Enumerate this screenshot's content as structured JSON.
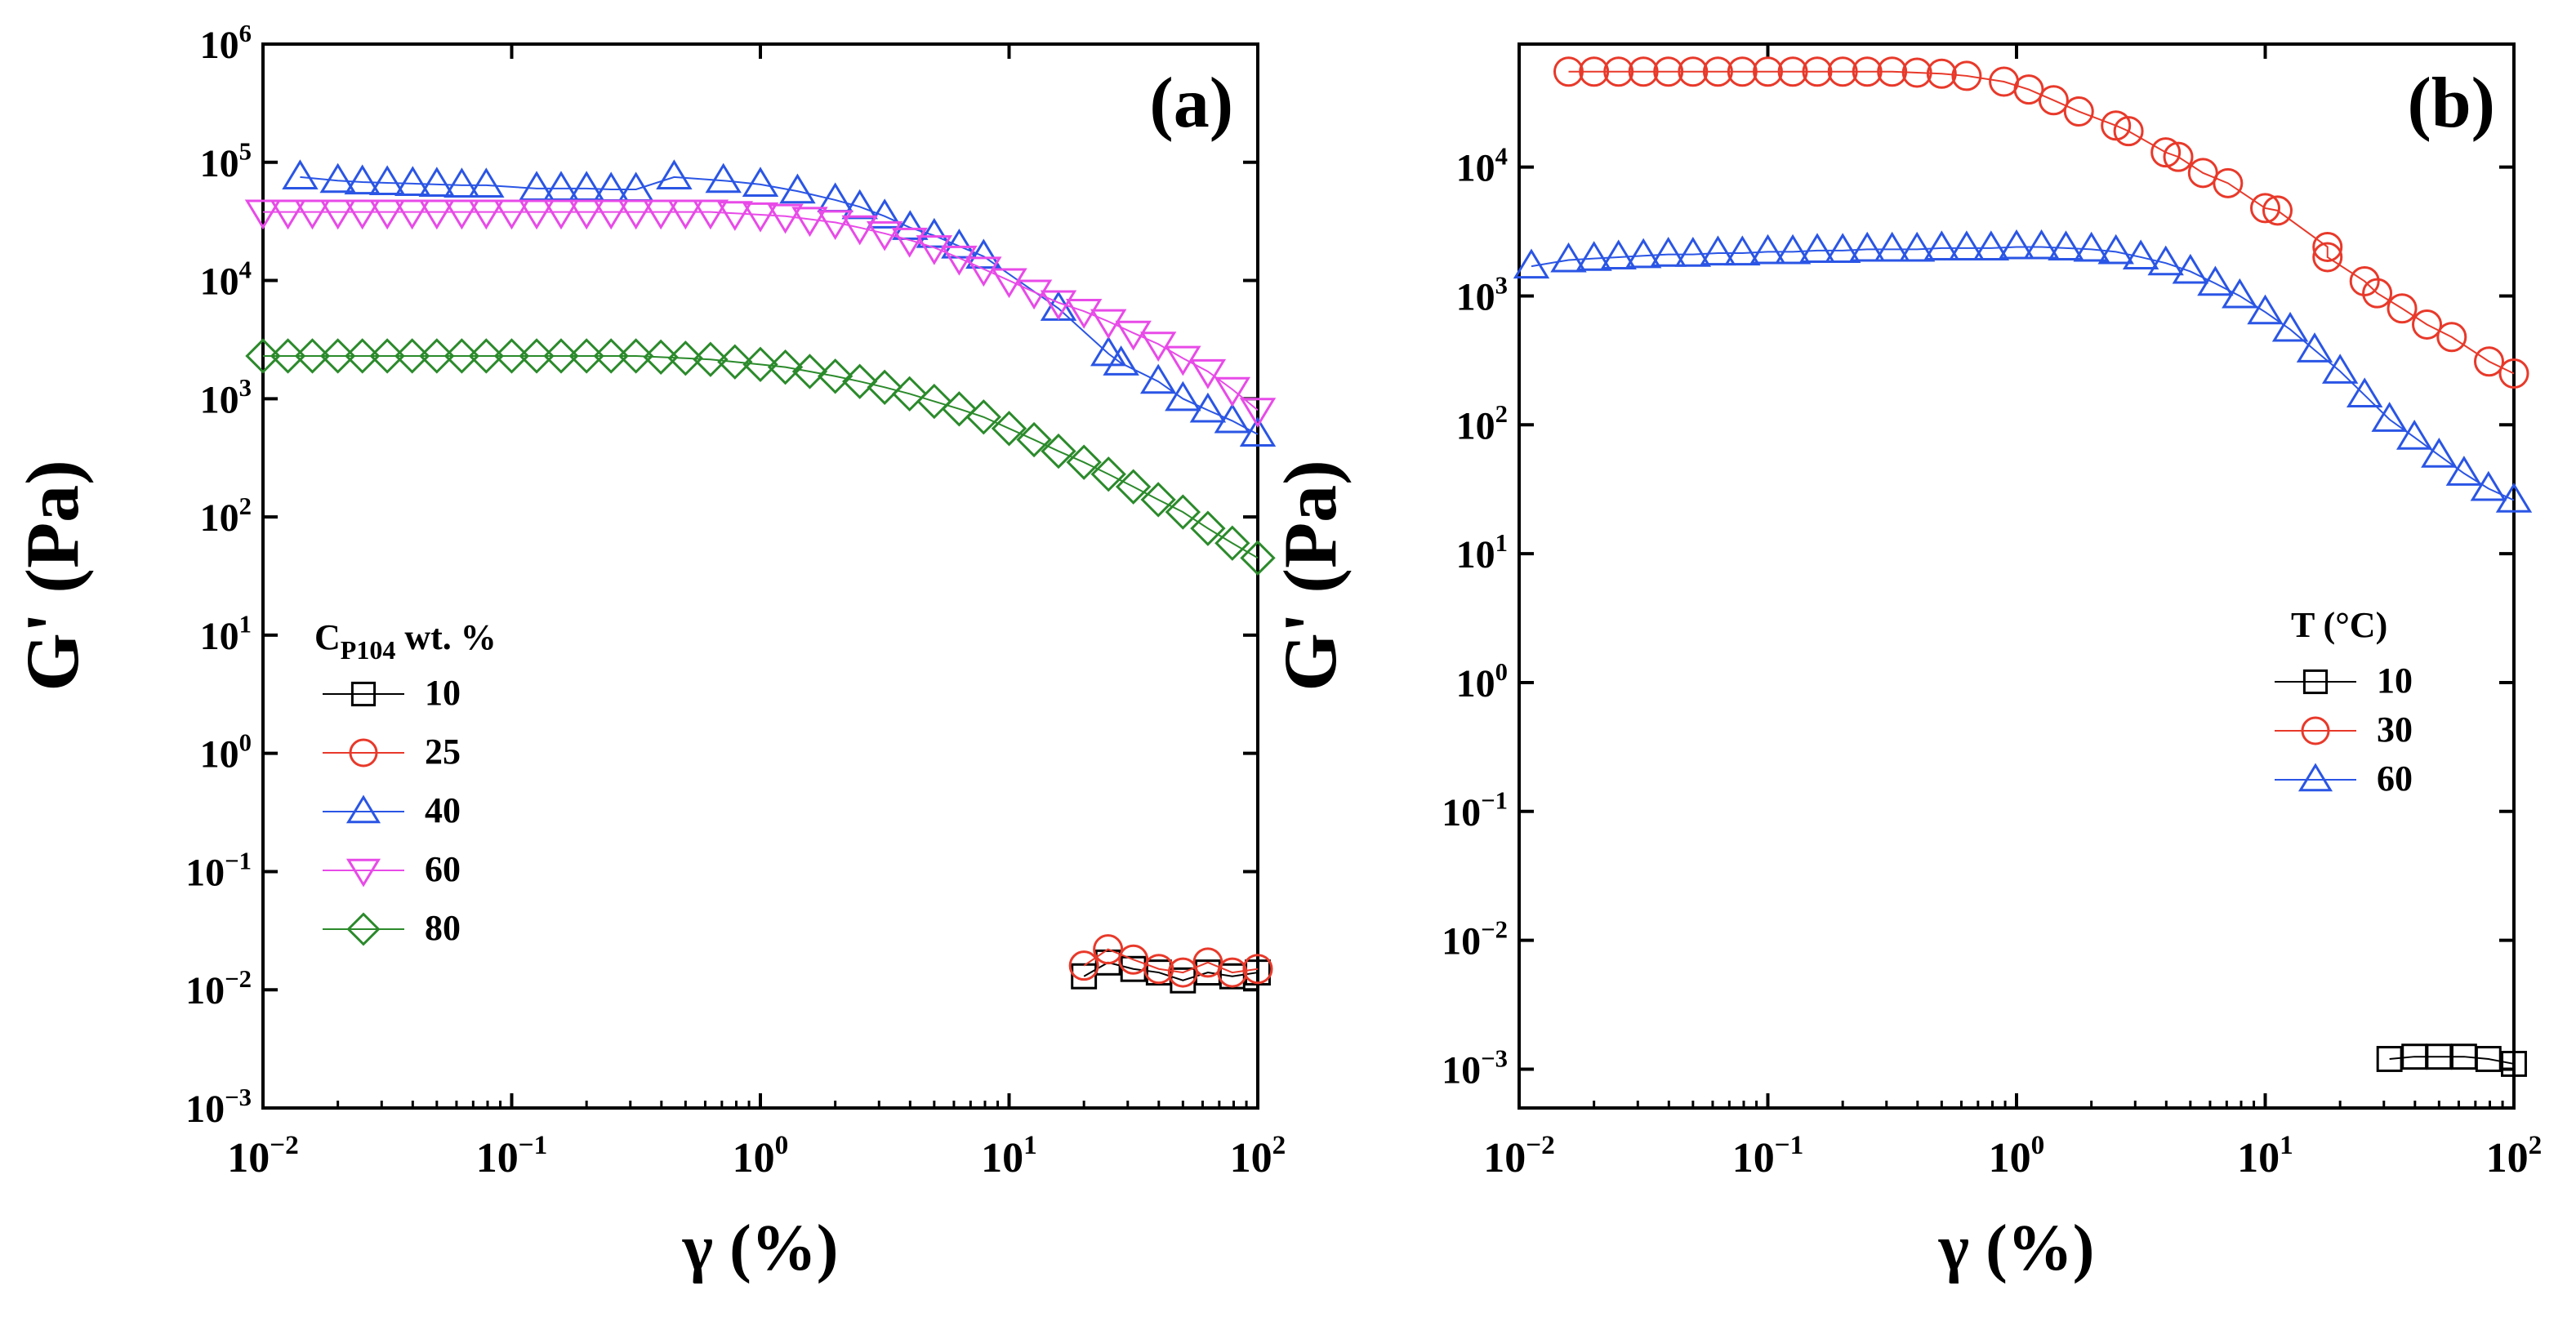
{
  "figure": {
    "panels": [
      {
        "panel_label": "(a)",
        "ylabel": "G' (Pa)",
        "xlabel": "γ (%)",
        "legend_title": "C",
        "legend_title_sub": "P104",
        "legend_title_suffix": " wt. %"
      },
      {
        "panel_label": "(b)",
        "ylabel": "G' (Pa)",
        "xlabel": "γ (%)",
        "legend_title": "T (°C)",
        "legend_title_sub": "",
        "legend_title_suffix": ""
      }
    ]
  },
  "chart_data": [
    {
      "type": "scatter",
      "panel": "(a)",
      "xlabel": "γ (%)",
      "ylabel": "G' (Pa)",
      "xscale": "log",
      "yscale": "log",
      "xlim": [
        0.01,
        100
      ],
      "ylim": [
        0.001,
        1000000
      ],
      "x_ticks": [
        "10^-2",
        "10^-1",
        "10^0",
        "10^1",
        "10^2"
      ],
      "y_ticks": [
        "10^-3",
        "10^-2",
        "10^-1",
        "10^0",
        "10^1",
        "10^2",
        "10^3",
        "10^4",
        "10^5",
        "10^6"
      ],
      "legend_placement": "left-middle",
      "series": [
        {
          "name": "10",
          "marker": "square",
          "color": "#000000",
          "x": [
            20,
            25,
            31.6,
            40,
            50,
            63,
            79,
            100
          ],
          "y": [
            0.013,
            0.017,
            0.015,
            0.014,
            0.012,
            0.014,
            0.013,
            0.014
          ]
        },
        {
          "name": "25",
          "marker": "circle",
          "color": "#e8392a",
          "x": [
            20,
            25,
            31.6,
            40,
            50,
            63,
            79,
            100
          ],
          "y": [
            0.016,
            0.022,
            0.018,
            0.015,
            0.014,
            0.017,
            0.014,
            0.015
          ]
        },
        {
          "name": "40",
          "marker": "triangle-up",
          "color": "#2a55e5",
          "x": [
            0.0141,
            0.02,
            0.0251,
            0.0316,
            0.04,
            0.05,
            0.063,
            0.079,
            0.126,
            0.158,
            0.2,
            0.251,
            0.316,
            0.45,
            0.71,
            1.0,
            1.41,
            2.0,
            2.51,
            3.16,
            4.0,
            5.0,
            6.3,
            7.9,
            15.8,
            25.1,
            28.2,
            39.8,
            50,
            63,
            79,
            100
          ],
          "y": [
            75000,
            70000,
            68000,
            67000,
            66000,
            65000,
            64000,
            64000,
            60000,
            60000,
            60000,
            59000,
            59000,
            75000,
            70000,
            65000,
            57000,
            48000,
            42000,
            35000,
            28000,
            24000,
            19500,
            16000,
            5800,
            2400,
            2000,
            1400,
            1000,
            800,
            650,
            500
          ]
        },
        {
          "name": "60",
          "marker": "triangle-down",
          "color": "#e84ae8",
          "x": [
            0.01,
            0.0126,
            0.0158,
            0.02,
            0.0251,
            0.0316,
            0.0398,
            0.05,
            0.063,
            0.079,
            0.1,
            0.126,
            0.158,
            0.2,
            0.251,
            0.316,
            0.398,
            0.5,
            0.63,
            0.79,
            1.0,
            1.26,
            1.58,
            2.0,
            2.51,
            3.16,
            3.98,
            5.0,
            6.3,
            7.9,
            10,
            12.6,
            15.8,
            20,
            25.1,
            31.6,
            39.8,
            50,
            63,
            79,
            100
          ],
          "y": [
            38000,
            38000,
            38000,
            38000,
            38000,
            38000,
            38000,
            38000,
            38000,
            38000,
            38000,
            38000,
            38000,
            38000,
            38000,
            38000,
            38000,
            38000,
            38000,
            37000,
            36000,
            35000,
            33000,
            31000,
            28000,
            25000,
            22000,
            19000,
            15500,
            12500,
            10000,
            8000,
            6500,
            5500,
            4500,
            3600,
            2900,
            2200,
            1700,
            1200,
            800
          ]
        },
        {
          "name": "80",
          "marker": "diamond",
          "color": "#2b8a2b",
          "x": [
            0.01,
            0.0126,
            0.0158,
            0.02,
            0.0251,
            0.0316,
            0.0398,
            0.05,
            0.063,
            0.079,
            0.1,
            0.126,
            0.158,
            0.2,
            0.251,
            0.316,
            0.398,
            0.5,
            0.63,
            0.79,
            1.0,
            1.26,
            1.58,
            2.0,
            2.51,
            3.16,
            3.98,
            5.0,
            6.3,
            7.9,
            10,
            12.6,
            15.8,
            20,
            25.1,
            31.6,
            39.8,
            50,
            63,
            79,
            100
          ],
          "y": [
            2300,
            2300,
            2300,
            2300,
            2300,
            2300,
            2300,
            2300,
            2300,
            2300,
            2300,
            2300,
            2300,
            2300,
            2300,
            2300,
            2250,
            2200,
            2150,
            2050,
            1950,
            1850,
            1700,
            1550,
            1400,
            1250,
            1100,
            950,
            820,
            700,
            560,
            450,
            360,
            290,
            230,
            180,
            140,
            110,
            80,
            60,
            45
          ]
        }
      ]
    },
    {
      "type": "scatter",
      "panel": "(b)",
      "xlabel": "γ (%)",
      "ylabel": "G' (Pa)",
      "xscale": "log",
      "yscale": "log",
      "xlim": [
        0.01,
        100
      ],
      "ylim": [
        0.0005,
        90000
      ],
      "x_ticks": [
        "10^-2",
        "10^-1",
        "10^0",
        "10^1",
        "10^2"
      ],
      "y_ticks": [
        "10^-3",
        "10^-2",
        "10^-1",
        "10^0",
        "10^1",
        "10^2",
        "10^3",
        "10^4"
      ],
      "legend_placement": "right-middle",
      "series": [
        {
          "name": "10",
          "marker": "square",
          "color": "#000000",
          "x": [
            31.6,
            39.8,
            50,
            63,
            79,
            100
          ],
          "y": [
            0.0012,
            0.00125,
            0.00125,
            0.00125,
            0.0012,
            0.0011
          ]
        },
        {
          "name": "30",
          "marker": "circle",
          "color": "#e8392a",
          "x": [
            0.0158,
            0.02,
            0.0251,
            0.0316,
            0.0398,
            0.05,
            0.063,
            0.079,
            0.1,
            0.126,
            0.158,
            0.2,
            0.251,
            0.316,
            0.398,
            0.5,
            0.63,
            0.89,
            1.12,
            1.41,
            1.78,
            2.51,
            2.82,
            3.98,
            4.47,
            5.62,
            7.08,
            10,
            11.2,
            17.8,
            17.8,
            25.1,
            28.2,
            35.5,
            44.7,
            56.2,
            79.4,
            100
          ],
          "y": [
            55000,
            55000,
            55000,
            55000,
            55000,
            55000,
            55000,
            55000,
            55000,
            55000,
            55000,
            55000,
            55000,
            55000,
            54000,
            53000,
            51000,
            46000,
            40000,
            33000,
            27000,
            21000,
            19000,
            13000,
            12000,
            9000,
            7500,
            4800,
            4600,
            2400,
            2000,
            1300,
            1050,
            800,
            600,
            480,
            310,
            250
          ]
        },
        {
          "name": "60",
          "marker": "triangle-up",
          "color": "#2a55e5",
          "x": [
            0.0112,
            0.0158,
            0.02,
            0.0251,
            0.0316,
            0.0398,
            0.05,
            0.063,
            0.079,
            0.1,
            0.126,
            0.158,
            0.2,
            0.251,
            0.316,
            0.398,
            0.5,
            0.63,
            0.79,
            1.0,
            1.26,
            1.58,
            2.0,
            2.51,
            3.16,
            3.98,
            5.0,
            6.3,
            7.9,
            10,
            12.6,
            15.8,
            20,
            25.1,
            31.6,
            39.8,
            50,
            63,
            79,
            100
          ],
          "y": [
            1700,
            1900,
            1950,
            2000,
            2050,
            2100,
            2100,
            2150,
            2150,
            2200,
            2200,
            2250,
            2250,
            2300,
            2300,
            2300,
            2350,
            2350,
            2350,
            2400,
            2400,
            2350,
            2300,
            2200,
            2000,
            1800,
            1550,
            1250,
            1000,
            750,
            550,
            380,
            260,
            170,
            110,
            80,
            58,
            42,
            32,
            26
          ]
        }
      ]
    }
  ]
}
